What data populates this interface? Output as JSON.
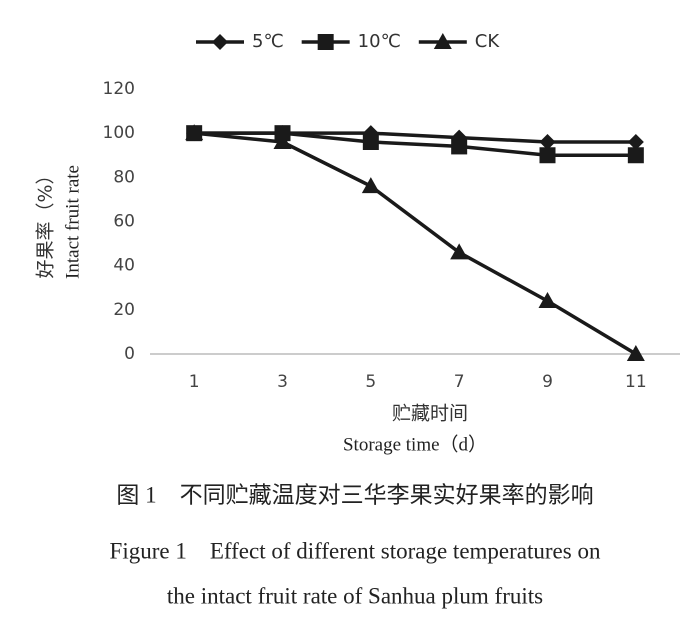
{
  "chart_data": {
    "type": "line",
    "x_label": [
      "贮藏时间",
      "Storage time（d）"
    ],
    "y_label": [
      "好果率（%）",
      "Intact fruit rate"
    ],
    "categories": [
      "1",
      "3",
      "5",
      "7",
      "9",
      "11"
    ],
    "series": [
      {
        "name": "5℃",
        "color": "#1a1a1a",
        "marker": "diamond",
        "values": [
          100,
          100,
          100,
          98,
          96,
          96
        ]
      },
      {
        "name": "10℃",
        "color": "#1a1a1a",
        "marker": "square",
        "values": [
          100,
          100,
          96,
          94,
          90,
          90
        ]
      },
      {
        "name": "CK",
        "color": "#1a1a1a",
        "marker": "triangle",
        "values": [
          100,
          96,
          76,
          46,
          24,
          0
        ]
      }
    ],
    "ylim": [
      0,
      120
    ],
    "yticks": [
      0,
      20,
      40,
      60,
      80,
      100,
      120
    ],
    "grid": false,
    "legend": "top",
    "captions": [
      "图 1　不同贮藏温度对三华李果实好果率的影响",
      "Figure 1　Effect of different storage temperatures on",
      "the intact fruit rate of Sanhua plum fruits"
    ]
  }
}
